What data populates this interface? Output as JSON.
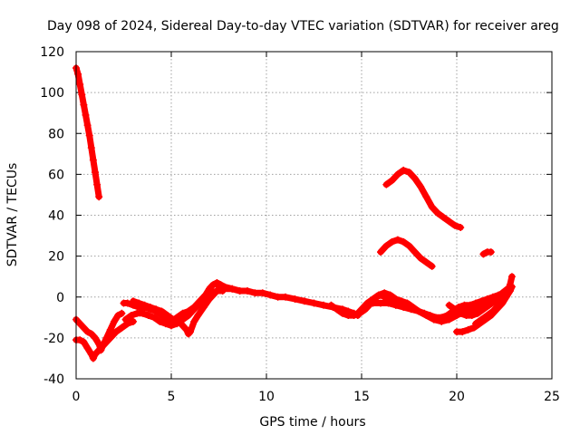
{
  "chart_data": {
    "type": "scatter",
    "title": "Day 098 of 2024, Sidereal Day-to-day VTEC variation (SDTVAR) for receiver areg",
    "xlabel": "GPS time / hours",
    "ylabel": "SDTVAR / TECUs",
    "xlim": [
      0,
      25
    ],
    "ylim": [
      -40,
      120
    ],
    "xticks": [
      0,
      5,
      10,
      15,
      20,
      25
    ],
    "yticks": [
      -40,
      -20,
      0,
      20,
      40,
      60,
      80,
      100,
      120
    ],
    "grid": true,
    "marker": "plus",
    "color": "#ff0000",
    "series": [
      {
        "name": "track-early-steep-descent",
        "points": [
          [
            0.0,
            112
          ],
          [
            0.1,
            109
          ],
          [
            0.2,
            104
          ],
          [
            0.3,
            99
          ],
          [
            0.4,
            94
          ],
          [
            0.5,
            89
          ],
          [
            0.6,
            84
          ],
          [
            0.7,
            79
          ],
          [
            0.8,
            73
          ],
          [
            0.9,
            67
          ],
          [
            1.0,
            61
          ],
          [
            1.1,
            55
          ],
          [
            1.2,
            49
          ]
        ]
      },
      {
        "name": "track-early-low-a",
        "points": [
          [
            0.0,
            -11
          ],
          [
            0.2,
            -13
          ],
          [
            0.4,
            -15
          ],
          [
            0.6,
            -17
          ],
          [
            0.8,
            -18
          ],
          [
            1.0,
            -20
          ],
          [
            1.2,
            -23
          ],
          [
            1.3,
            -26
          ],
          [
            1.4,
            -24
          ],
          [
            1.6,
            -20
          ],
          [
            1.8,
            -16
          ],
          [
            2.0,
            -12
          ],
          [
            2.2,
            -9
          ],
          [
            2.4,
            -8
          ]
        ]
      },
      {
        "name": "track-early-low-b",
        "points": [
          [
            0.0,
            -21
          ],
          [
            0.2,
            -21
          ],
          [
            0.4,
            -22
          ],
          [
            0.6,
            -25
          ],
          [
            0.8,
            -28
          ],
          [
            0.9,
            -30
          ],
          [
            1.0,
            -28
          ],
          [
            1.2,
            -26
          ],
          [
            1.5,
            -23
          ],
          [
            1.8,
            -20
          ],
          [
            2.1,
            -17
          ],
          [
            2.4,
            -15
          ],
          [
            2.7,
            -13
          ],
          [
            3.0,
            -12
          ]
        ]
      },
      {
        "name": "track-morning-a",
        "points": [
          [
            2.5,
            -3
          ],
          [
            2.7,
            -3
          ],
          [
            3.0,
            -4
          ],
          [
            3.3,
            -5
          ],
          [
            3.6,
            -5
          ],
          [
            3.9,
            -6
          ],
          [
            4.2,
            -7
          ],
          [
            4.5,
            -9
          ],
          [
            4.8,
            -11
          ],
          [
            5.0,
            -12
          ],
          [
            5.3,
            -10
          ],
          [
            5.6,
            -8
          ],
          [
            5.9,
            -7
          ],
          [
            6.2,
            -5
          ],
          [
            6.5,
            -2
          ],
          [
            6.8,
            1
          ],
          [
            7.0,
            4
          ],
          [
            7.2,
            6
          ],
          [
            7.4,
            7
          ],
          [
            7.6,
            6
          ],
          [
            7.8,
            5
          ],
          [
            8.2,
            4
          ],
          [
            8.6,
            3
          ]
        ]
      },
      {
        "name": "track-morning-b",
        "points": [
          [
            2.6,
            -11
          ],
          [
            2.9,
            -9
          ],
          [
            3.2,
            -8
          ],
          [
            3.5,
            -8
          ],
          [
            3.8,
            -9
          ],
          [
            4.1,
            -10
          ],
          [
            4.4,
            -12
          ],
          [
            4.7,
            -13
          ],
          [
            5.0,
            -14
          ],
          [
            5.3,
            -13
          ],
          [
            5.6,
            -11
          ],
          [
            5.9,
            -9
          ],
          [
            6.2,
            -6
          ],
          [
            6.5,
            -3
          ],
          [
            6.8,
            0
          ],
          [
            7.1,
            2
          ],
          [
            7.4,
            3
          ],
          [
            7.7,
            3
          ]
        ]
      },
      {
        "name": "track-morning-c",
        "points": [
          [
            3.0,
            -2
          ],
          [
            3.3,
            -3
          ],
          [
            3.6,
            -4
          ],
          [
            3.9,
            -5
          ],
          [
            4.2,
            -6
          ],
          [
            4.5,
            -7
          ],
          [
            4.8,
            -9
          ],
          [
            5.1,
            -11
          ],
          [
            5.4,
            -12
          ],
          [
            5.6,
            -14
          ],
          [
            5.8,
            -16
          ],
          [
            5.9,
            -18
          ],
          [
            6.0,
            -17
          ],
          [
            6.2,
            -12
          ],
          [
            6.4,
            -9
          ],
          [
            6.7,
            -5
          ],
          [
            7.0,
            -1
          ],
          [
            7.3,
            2
          ],
          [
            7.5,
            4
          ],
          [
            7.6,
            5
          ]
        ]
      },
      {
        "name": "track-midday",
        "points": [
          [
            7.5,
            5
          ],
          [
            7.8,
            4
          ],
          [
            8.2,
            4
          ],
          [
            8.6,
            3
          ],
          [
            9.0,
            3
          ],
          [
            9.4,
            2
          ],
          [
            9.8,
            2
          ],
          [
            10.2,
            1
          ],
          [
            10.6,
            0
          ],
          [
            11.0,
            0
          ],
          [
            11.5,
            -1
          ],
          [
            12.0,
            -2
          ],
          [
            12.5,
            -3
          ],
          [
            13.0,
            -4
          ],
          [
            13.5,
            -5
          ],
          [
            14.0,
            -6
          ],
          [
            14.3,
            -7
          ],
          [
            14.6,
            -8
          ],
          [
            14.8,
            -9
          ]
        ]
      },
      {
        "name": "track-midday-b",
        "points": [
          [
            13.4,
            -4
          ],
          [
            13.7,
            -6
          ],
          [
            14.0,
            -8
          ],
          [
            14.3,
            -9
          ],
          [
            14.6,
            -9
          ],
          [
            14.9,
            -8
          ],
          [
            15.2,
            -6
          ],
          [
            15.5,
            -3
          ],
          [
            15.8,
            0
          ],
          [
            16.0,
            1
          ],
          [
            16.2,
            0
          ],
          [
            16.4,
            -2
          ],
          [
            16.6,
            -3
          ],
          [
            16.8,
            -4
          ],
          [
            17.0,
            -4
          ]
        ]
      },
      {
        "name": "track-afternoon-a",
        "points": [
          [
            14.8,
            -8
          ],
          [
            15.0,
            -6
          ],
          [
            15.3,
            -3
          ],
          [
            15.6,
            -1
          ],
          [
            15.9,
            1
          ],
          [
            16.2,
            2
          ],
          [
            16.5,
            1
          ],
          [
            16.8,
            -1
          ],
          [
            17.1,
            -2
          ],
          [
            17.4,
            -3
          ],
          [
            17.7,
            -5
          ],
          [
            18.0,
            -7
          ],
          [
            18.3,
            -8
          ],
          [
            18.6,
            -9
          ],
          [
            18.9,
            -10
          ],
          [
            19.2,
            -10
          ],
          [
            19.5,
            -9
          ],
          [
            19.8,
            -7
          ],
          [
            20.1,
            -5
          ],
          [
            20.4,
            -4
          ],
          [
            20.7,
            -4
          ],
          [
            21.0,
            -3
          ],
          [
            21.3,
            -2
          ],
          [
            21.6,
            -1
          ],
          [
            21.9,
            0
          ],
          [
            22.2,
            1
          ],
          [
            22.5,
            2
          ],
          [
            22.8,
            3
          ]
        ]
      },
      {
        "name": "track-afternoon-b",
        "points": [
          [
            15.6,
            -3
          ],
          [
            16.0,
            -3
          ],
          [
            16.4,
            -3
          ],
          [
            16.8,
            -4
          ],
          [
            17.2,
            -5
          ],
          [
            17.6,
            -6
          ],
          [
            18.0,
            -7
          ],
          [
            18.4,
            -9
          ],
          [
            18.8,
            -11
          ],
          [
            19.2,
            -12
          ],
          [
            19.6,
            -11
          ],
          [
            20.0,
            -9
          ],
          [
            20.4,
            -7
          ],
          [
            20.8,
            -6
          ],
          [
            21.2,
            -5
          ],
          [
            21.6,
            -3
          ],
          [
            22.0,
            -1
          ],
          [
            22.4,
            2
          ],
          [
            22.8,
            5
          ]
        ]
      },
      {
        "name": "track-evening-rise",
        "points": [
          [
            19.6,
            -4
          ],
          [
            19.9,
            -6
          ],
          [
            20.2,
            -8
          ],
          [
            20.5,
            -9
          ],
          [
            20.8,
            -9
          ],
          [
            21.1,
            -8
          ],
          [
            21.4,
            -6
          ],
          [
            21.7,
            -4
          ],
          [
            22.0,
            -2
          ],
          [
            22.3,
            0
          ],
          [
            22.6,
            2
          ],
          [
            22.8,
            4
          ]
        ]
      },
      {
        "name": "track-evening-low",
        "points": [
          [
            20.0,
            -17
          ],
          [
            20.3,
            -17
          ],
          [
            20.6,
            -16
          ],
          [
            20.9,
            -15
          ],
          [
            21.2,
            -13
          ],
          [
            21.5,
            -11
          ],
          [
            21.8,
            -9
          ],
          [
            22.1,
            -6
          ],
          [
            22.4,
            -3
          ],
          [
            22.6,
            0
          ],
          [
            22.8,
            3
          ],
          [
            22.9,
            5
          ]
        ]
      },
      {
        "name": "track-evening-low-b",
        "points": [
          [
            21.0,
            -13
          ],
          [
            21.3,
            -11
          ],
          [
            21.6,
            -9
          ],
          [
            21.9,
            -7
          ],
          [
            22.2,
            -4
          ],
          [
            22.5,
            -1
          ],
          [
            22.7,
            2
          ],
          [
            22.8,
            6
          ],
          [
            22.9,
            10
          ]
        ]
      },
      {
        "name": "track-upper-arc",
        "points": [
          [
            16.3,
            55
          ],
          [
            16.6,
            57
          ],
          [
            16.9,
            60
          ],
          [
            17.2,
            62
          ],
          [
            17.5,
            61
          ],
          [
            17.8,
            58
          ],
          [
            18.1,
            54
          ],
          [
            18.4,
            49
          ],
          [
            18.7,
            44
          ],
          [
            19.0,
            41
          ],
          [
            19.3,
            39
          ],
          [
            19.6,
            37
          ],
          [
            19.9,
            35
          ],
          [
            20.2,
            34
          ]
        ]
      },
      {
        "name": "track-mid-arc",
        "points": [
          [
            16.0,
            22
          ],
          [
            16.3,
            25
          ],
          [
            16.6,
            27
          ],
          [
            16.9,
            28
          ],
          [
            17.2,
            27
          ],
          [
            17.5,
            25
          ],
          [
            17.8,
            22
          ],
          [
            18.1,
            19
          ],
          [
            18.4,
            17
          ],
          [
            18.7,
            15
          ]
        ]
      },
      {
        "name": "track-isolated",
        "points": [
          [
            21.4,
            21
          ],
          [
            21.6,
            22
          ],
          [
            21.8,
            22
          ]
        ]
      }
    ]
  }
}
